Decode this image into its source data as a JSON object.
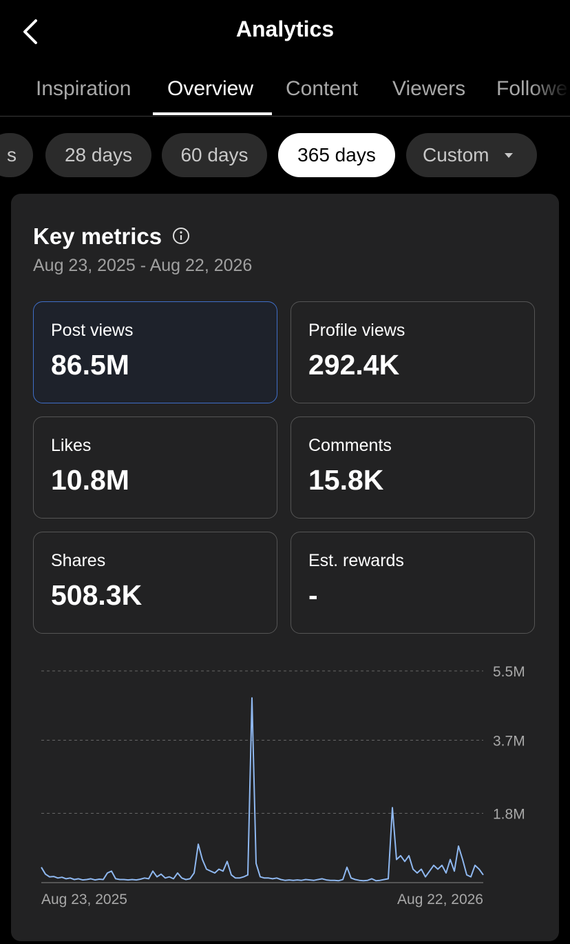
{
  "header": {
    "title": "Analytics"
  },
  "tabs": [
    "Inspiration",
    "Overview",
    "Content",
    "Viewers",
    "Followe"
  ],
  "ranges": [
    "s",
    "28 days",
    "60 days",
    "365 days",
    "Custom"
  ],
  "key_metrics": {
    "title": "Key metrics",
    "date_range": "Aug 23, 2025 - Aug 22, 2026",
    "metrics": [
      {
        "label": "Post views",
        "value": "86.5M"
      },
      {
        "label": "Profile views",
        "value": "292.4K"
      },
      {
        "label": "Likes",
        "value": "10.8M"
      },
      {
        "label": "Comments",
        "value": "15.8K"
      },
      {
        "label": "Shares",
        "value": "508.3K"
      },
      {
        "label": "Est. rewards",
        "value": "-"
      }
    ]
  },
  "chart_data": {
    "type": "line",
    "color": "#8fb8f0",
    "grid": true,
    "ylim": [
      0,
      5500000
    ],
    "yticks": [
      {
        "value": 1800000,
        "label": "1.8M"
      },
      {
        "value": 3700000,
        "label": "3.7M"
      },
      {
        "value": 5500000,
        "label": "5.5M"
      }
    ],
    "categories": [
      "Aug 23, 2025",
      null,
      null,
      null,
      null,
      null,
      null,
      null,
      null,
      null,
      null,
      null,
      null,
      null,
      null,
      null,
      null,
      null,
      null,
      null,
      null,
      null,
      null,
      null,
      null,
      null,
      null,
      null,
      null,
      null,
      null,
      null,
      null,
      null,
      null,
      null,
      null,
      null,
      null,
      null,
      null,
      null,
      null,
      null,
      null,
      null,
      null,
      null,
      null,
      null,
      null,
      null,
      null,
      null,
      null,
      null,
      null,
      null,
      null,
      null,
      null,
      null,
      null,
      null,
      null,
      null,
      null,
      null,
      null,
      null,
      null,
      null,
      null,
      null,
      null,
      null,
      null,
      null,
      null,
      null,
      null,
      null,
      null,
      null,
      null,
      null,
      null,
      null,
      null,
      null,
      null,
      null,
      null,
      null,
      null,
      null,
      null,
      null,
      null,
      null,
      null,
      null,
      null,
      null,
      null,
      null,
      null,
      "Aug 22, 2026"
    ],
    "values": [
      400000,
      220000,
      150000,
      160000,
      120000,
      140000,
      100000,
      120000,
      80000,
      100000,
      70000,
      80000,
      100000,
      70000,
      90000,
      80000,
      250000,
      300000,
      100000,
      80000,
      80000,
      70000,
      80000,
      70000,
      90000,
      120000,
      100000,
      300000,
      150000,
      220000,
      120000,
      150000,
      100000,
      250000,
      120000,
      80000,
      100000,
      250000,
      1000000,
      600000,
      350000,
      300000,
      250000,
      350000,
      300000,
      550000,
      200000,
      120000,
      120000,
      150000,
      200000,
      4800000,
      500000,
      150000,
      120000,
      120000,
      100000,
      120000,
      80000,
      60000,
      70000,
      60000,
      70000,
      60000,
      80000,
      70000,
      60000,
      80000,
      100000,
      70000,
      60000,
      60000,
      50000,
      80000,
      400000,
      120000,
      80000,
      60000,
      50000,
      60000,
      100000,
      50000,
      60000,
      80000,
      100000,
      1950000,
      600000,
      700000,
      550000,
      700000,
      350000,
      250000,
      350000,
      150000,
      300000,
      450000,
      350000,
      450000,
      250000,
      600000,
      300000,
      950000,
      600000,
      200000,
      150000,
      450000,
      350000,
      200000
    ]
  }
}
